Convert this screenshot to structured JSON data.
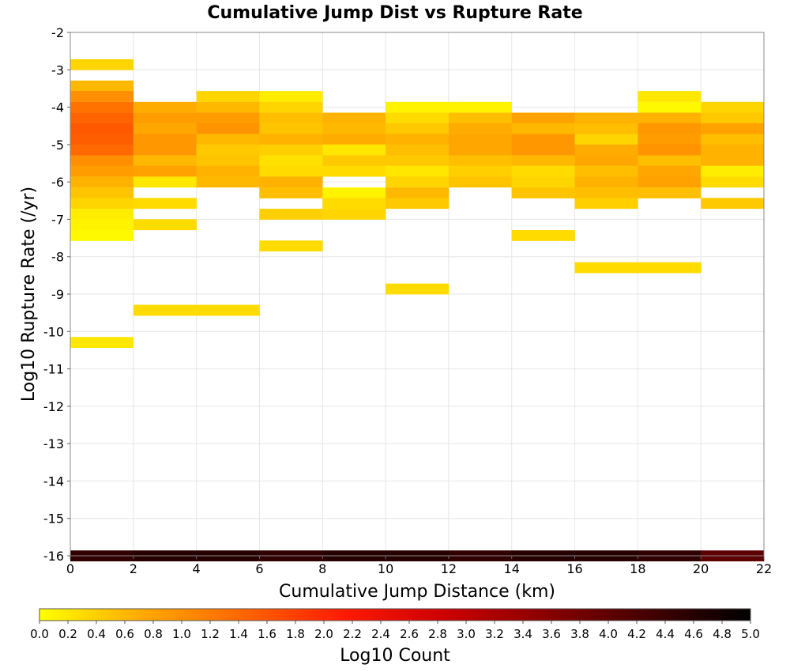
{
  "chart_data": {
    "type": "heatmap",
    "title": "Cumulative Jump Dist vs Rupture Rate",
    "xlabel": "Cumulative Jump Distance (km)",
    "ylabel": "Log10 Rupture Rate (/yr)",
    "xlim": [
      0,
      22
    ],
    "ylim": [
      -16,
      -2
    ],
    "x_ticks": [
      "0",
      "2",
      "4",
      "6",
      "8",
      "10",
      "12",
      "14",
      "16",
      "18",
      "20",
      "22"
    ],
    "y_ticks": [
      "-2",
      "-3",
      "-4",
      "-5",
      "-6",
      "-7",
      "-8",
      "-9",
      "-10",
      "-11",
      "-12",
      "-13",
      "-14",
      "-15",
      "-16"
    ],
    "x_bin_width": 2,
    "y_bin_height": 0.2857,
    "grid": true,
    "colorbar": {
      "label": "Log10 Count",
      "min": 0.0,
      "max": 5.0,
      "ticks": [
        "0.0",
        "0.2",
        "0.4",
        "0.6",
        "0.8",
        "1.0",
        "1.2",
        "1.4",
        "1.6",
        "1.8",
        "2.0",
        "2.2",
        "2.4",
        "2.6",
        "2.8",
        "3.0",
        "3.2",
        "3.4",
        "3.6",
        "3.8",
        "4.0",
        "4.2",
        "4.4",
        "4.6",
        "4.8",
        "5.0"
      ],
      "colors": [
        "#ffff00",
        "#ffaa00",
        "#ff6600",
        "#ff1a00",
        "#cc0000",
        "#880000",
        "#440000",
        "#000000"
      ]
    },
    "cells": [
      [
        0,
        -2.86,
        0.35
      ],
      [
        0,
        -3.43,
        0.6
      ],
      [
        0,
        -3.71,
        1.0
      ],
      [
        0,
        -4.0,
        1.3
      ],
      [
        0,
        -4.29,
        1.45
      ],
      [
        0,
        -4.57,
        1.55
      ],
      [
        0,
        -4.86,
        1.5
      ],
      [
        0,
        -5.14,
        1.4
      ],
      [
        0,
        -5.43,
        1.0
      ],
      [
        0,
        -5.71,
        0.85
      ],
      [
        0,
        -6.0,
        0.65
      ],
      [
        0,
        -6.29,
        0.5
      ],
      [
        0,
        -6.57,
        0.35
      ],
      [
        0,
        -6.86,
        0.15
      ],
      [
        0,
        -7.14,
        0.1
      ],
      [
        0,
        -7.43,
        0.05
      ],
      [
        0,
        -10.29,
        0.2
      ],
      [
        2,
        -4.0,
        0.7
      ],
      [
        2,
        -4.29,
        0.85
      ],
      [
        2,
        -4.57,
        0.75
      ],
      [
        2,
        -4.86,
        0.9
      ],
      [
        2,
        -5.14,
        0.9
      ],
      [
        2,
        -5.43,
        0.6
      ],
      [
        2,
        -5.71,
        0.8
      ],
      [
        2,
        -6.0,
        0.2
      ],
      [
        2,
        -6.57,
        0.3
      ],
      [
        2,
        -7.14,
        0.3
      ],
      [
        2,
        -9.43,
        0.3
      ],
      [
        4,
        -3.71,
        0.35
      ],
      [
        4,
        -4.0,
        0.6
      ],
      [
        4,
        -4.29,
        0.85
      ],
      [
        4,
        -4.57,
        0.95
      ],
      [
        4,
        -4.86,
        0.6
      ],
      [
        4,
        -5.14,
        0.45
      ],
      [
        4,
        -5.43,
        0.5
      ],
      [
        4,
        -5.71,
        0.65
      ],
      [
        4,
        -6.0,
        0.6
      ],
      [
        4,
        -9.43,
        0.3
      ],
      [
        6,
        -3.71,
        0.15
      ],
      [
        6,
        -4.0,
        0.35
      ],
      [
        6,
        -4.29,
        0.55
      ],
      [
        6,
        -4.57,
        0.5
      ],
      [
        6,
        -4.86,
        0.65
      ],
      [
        6,
        -5.14,
        0.4
      ],
      [
        6,
        -5.43,
        0.25
      ],
      [
        6,
        -5.71,
        0.3
      ],
      [
        6,
        -6.0,
        0.65
      ],
      [
        6,
        -6.29,
        0.55
      ],
      [
        6,
        -6.86,
        0.4
      ],
      [
        6,
        -7.71,
        0.3
      ],
      [
        8,
        -4.29,
        0.65
      ],
      [
        8,
        -4.57,
        0.6
      ],
      [
        8,
        -4.86,
        0.7
      ],
      [
        8,
        -5.14,
        0.2
      ],
      [
        8,
        -5.43,
        0.45
      ],
      [
        8,
        -5.71,
        0.3
      ],
      [
        8,
        -6.29,
        0.1
      ],
      [
        8,
        -6.57,
        0.3
      ],
      [
        8,
        -6.86,
        0.35
      ],
      [
        10,
        -4.0,
        0.1
      ],
      [
        10,
        -4.29,
        0.3
      ],
      [
        10,
        -4.57,
        0.45
      ],
      [
        10,
        -4.86,
        0.65
      ],
      [
        10,
        -5.14,
        0.55
      ],
      [
        10,
        -5.43,
        0.45
      ],
      [
        10,
        -5.71,
        0.2
      ],
      [
        10,
        -6.0,
        0.35
      ],
      [
        10,
        -6.29,
        0.6
      ],
      [
        10,
        -6.57,
        0.45
      ],
      [
        10,
        -8.86,
        0.3
      ],
      [
        12,
        -4.0,
        0.1
      ],
      [
        12,
        -4.29,
        0.55
      ],
      [
        12,
        -4.57,
        0.7
      ],
      [
        12,
        -4.86,
        0.75
      ],
      [
        12,
        -5.14,
        0.75
      ],
      [
        12,
        -5.43,
        0.55
      ],
      [
        12,
        -5.71,
        0.4
      ],
      [
        12,
        -6.0,
        0.5
      ],
      [
        14,
        -4.29,
        0.8
      ],
      [
        14,
        -4.57,
        0.6
      ],
      [
        14,
        -4.86,
        0.9
      ],
      [
        14,
        -5.14,
        0.9
      ],
      [
        14,
        -5.43,
        0.6
      ],
      [
        14,
        -5.71,
        0.3
      ],
      [
        14,
        -6.0,
        0.35
      ],
      [
        14,
        -6.29,
        0.5
      ],
      [
        14,
        -7.43,
        0.3
      ],
      [
        16,
        -4.29,
        0.65
      ],
      [
        16,
        -4.57,
        0.55
      ],
      [
        16,
        -4.86,
        0.35
      ],
      [
        16,
        -5.14,
        0.7
      ],
      [
        16,
        -5.43,
        0.75
      ],
      [
        16,
        -5.71,
        0.55
      ],
      [
        16,
        -6.0,
        0.65
      ],
      [
        16,
        -6.29,
        0.55
      ],
      [
        16,
        -6.57,
        0.4
      ],
      [
        16,
        -8.29,
        0.3
      ],
      [
        18,
        -3.71,
        0.2
      ],
      [
        18,
        -4.0,
        0.05
      ],
      [
        18,
        -4.29,
        0.65
      ],
      [
        18,
        -4.57,
        0.9
      ],
      [
        18,
        -4.86,
        0.85
      ],
      [
        18,
        -5.14,
        0.95
      ],
      [
        18,
        -5.43,
        0.55
      ],
      [
        18,
        -5.71,
        0.75
      ],
      [
        18,
        -6.0,
        0.8
      ],
      [
        18,
        -6.29,
        0.55
      ],
      [
        18,
        -8.29,
        0.3
      ],
      [
        20,
        -4.0,
        0.35
      ],
      [
        20,
        -4.29,
        0.45
      ],
      [
        20,
        -4.57,
        0.8
      ],
      [
        20,
        -4.86,
        0.55
      ],
      [
        20,
        -5.14,
        0.65
      ],
      [
        20,
        -5.43,
        0.65
      ],
      [
        20,
        -5.71,
        0.15
      ],
      [
        20,
        -6.0,
        0.3
      ],
      [
        20,
        -6.57,
        0.45
      ],
      [
        0,
        -16.0,
        4.5
      ],
      [
        2,
        -16.0,
        4.6
      ],
      [
        4,
        -16.0,
        4.6
      ],
      [
        6,
        -16.0,
        4.5
      ],
      [
        8,
        -16.0,
        4.6
      ],
      [
        10,
        -16.0,
        4.6
      ],
      [
        12,
        -16.0,
        4.5
      ],
      [
        14,
        -16.0,
        4.6
      ],
      [
        16,
        -16.0,
        4.6
      ],
      [
        18,
        -16.0,
        4.5
      ],
      [
        20,
        -16.0,
        4.0
      ]
    ]
  }
}
